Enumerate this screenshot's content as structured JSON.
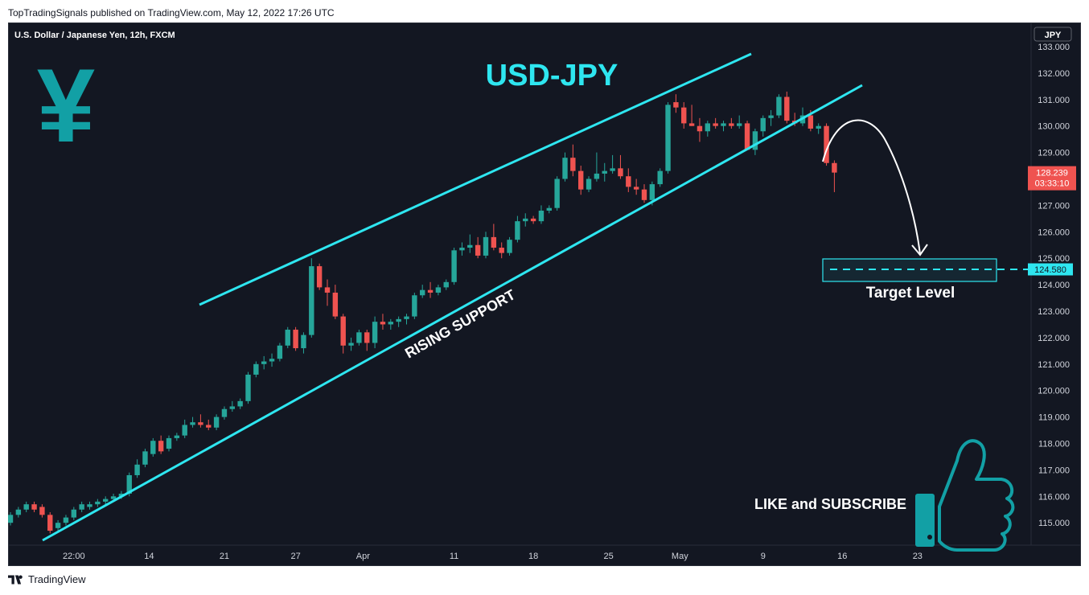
{
  "header": {
    "publisher_line": "TopTradingSignals published on TradingView.com, May 12, 2022 17:26 UTC"
  },
  "footer": {
    "brand": "TradingView",
    "logo_icon": "tradingview-logo-icon"
  },
  "colors": {
    "background": "#131722",
    "up": "#26a69a",
    "down": "#ef5350",
    "channel": "#2ee6f0",
    "teal_icon": "#12a0a5",
    "text": "#d1d4dc"
  },
  "chart_data": {
    "type": "candlestick",
    "symbol_label": "U.S. Dollar / Japanese Yen, 12h, FXCM",
    "title": "USD-JPY",
    "currency": "JPY",
    "last_price": "128.239",
    "countdown": "03:33:10",
    "target_price": "124.580",
    "target_value": 124.58,
    "target_label": "Target Level",
    "channel_label": "RISING SUPPORT",
    "cta_label": "LIKE and SUBSCRIBE",
    "yen_symbol": "¥",
    "icons": [
      "yen-icon",
      "thumbs-up-icon"
    ],
    "ylim": [
      114.0,
      134.0
    ],
    "yticks": [
      "115.000",
      "116.000",
      "117.000",
      "118.000",
      "119.000",
      "120.000",
      "121.000",
      "122.000",
      "123.000",
      "124.000",
      "125.000",
      "126.000",
      "127.000",
      "128.000",
      "129.000",
      "130.000",
      "131.000",
      "132.000",
      "133.000"
    ],
    "xticks": [
      "22:00",
      "14",
      "21",
      "27",
      "Apr",
      "11",
      "18",
      "25",
      "May",
      "9",
      "16",
      "23"
    ],
    "xtick_index": [
      8,
      17.5,
      27,
      36,
      44.5,
      56,
      66,
      75.5,
      84.5,
      95,
      105,
      114.5
    ],
    "candles": [
      [
        115.0,
        115.4,
        114.9,
        115.3
      ],
      [
        115.3,
        115.6,
        115.2,
        115.5
      ],
      [
        115.5,
        115.8,
        115.4,
        115.7
      ],
      [
        115.7,
        115.8,
        115.4,
        115.5
      ],
      [
        115.6,
        115.7,
        115.2,
        115.3
      ],
      [
        115.3,
        115.4,
        114.6,
        114.7
      ],
      [
        114.8,
        115.1,
        114.7,
        115.0
      ],
      [
        115.0,
        115.3,
        114.9,
        115.2
      ],
      [
        115.2,
        115.6,
        115.1,
        115.5
      ],
      [
        115.5,
        115.8,
        115.4,
        115.7
      ],
      [
        115.6,
        115.8,
        115.5,
        115.7
      ],
      [
        115.7,
        115.9,
        115.6,
        115.8
      ],
      [
        115.8,
        116.0,
        115.7,
        115.9
      ],
      [
        115.9,
        116.1,
        115.8,
        116.0
      ],
      [
        116.0,
        116.2,
        115.9,
        116.1
      ],
      [
        116.1,
        116.9,
        116.0,
        116.8
      ],
      [
        116.8,
        117.4,
        116.7,
        117.2
      ],
      [
        117.2,
        117.8,
        117.1,
        117.7
      ],
      [
        117.6,
        118.2,
        117.5,
        118.1
      ],
      [
        118.1,
        118.3,
        117.6,
        117.7
      ],
      [
        117.8,
        118.3,
        117.7,
        118.2
      ],
      [
        118.2,
        118.4,
        118.1,
        118.3
      ],
      [
        118.3,
        118.9,
        118.2,
        118.7
      ],
      [
        118.7,
        119.0,
        118.6,
        118.8
      ],
      [
        118.8,
        119.1,
        118.6,
        118.7
      ],
      [
        118.7,
        118.9,
        118.5,
        118.6
      ],
      [
        118.6,
        119.1,
        118.5,
        119.0
      ],
      [
        119.0,
        119.4,
        118.9,
        119.3
      ],
      [
        119.3,
        119.6,
        119.2,
        119.4
      ],
      [
        119.4,
        119.7,
        119.3,
        119.6
      ],
      [
        119.6,
        120.7,
        119.5,
        120.6
      ],
      [
        120.6,
        121.1,
        120.5,
        121.0
      ],
      [
        121.0,
        121.3,
        120.8,
        121.1
      ],
      [
        121.1,
        121.4,
        120.9,
        121.2
      ],
      [
        121.2,
        121.8,
        121.1,
        121.7
      ],
      [
        121.7,
        122.4,
        121.6,
        122.3
      ],
      [
        122.3,
        122.4,
        121.5,
        121.6
      ],
      [
        121.6,
        122.2,
        121.4,
        122.1
      ],
      [
        122.1,
        125.0,
        122.0,
        124.7
      ],
      [
        124.7,
        124.8,
        123.8,
        123.9
      ],
      [
        123.9,
        124.2,
        123.2,
        123.7
      ],
      [
        123.7,
        124.0,
        122.7,
        122.8
      ],
      [
        122.8,
        122.9,
        121.4,
        121.7
      ],
      [
        121.7,
        122.0,
        121.5,
        121.8
      ],
      [
        121.8,
        122.3,
        121.7,
        122.2
      ],
      [
        122.2,
        122.3,
        121.5,
        121.8
      ],
      [
        121.8,
        122.8,
        121.6,
        122.6
      ],
      [
        122.6,
        122.9,
        122.3,
        122.5
      ],
      [
        122.5,
        122.7,
        122.3,
        122.6
      ],
      [
        122.6,
        122.8,
        122.4,
        122.7
      ],
      [
        122.7,
        122.9,
        122.5,
        122.8
      ],
      [
        122.8,
        123.7,
        122.7,
        123.6
      ],
      [
        123.6,
        124.0,
        123.5,
        123.8
      ],
      [
        123.8,
        124.1,
        123.5,
        123.7
      ],
      [
        123.7,
        124.0,
        123.6,
        123.9
      ],
      [
        123.9,
        124.2,
        123.8,
        124.1
      ],
      [
        124.1,
        125.4,
        124.0,
        125.3
      ],
      [
        125.3,
        125.6,
        125.1,
        125.4
      ],
      [
        125.4,
        125.9,
        125.2,
        125.5
      ],
      [
        125.5,
        125.8,
        125.0,
        125.1
      ],
      [
        125.1,
        126.0,
        125.0,
        125.8
      ],
      [
        125.8,
        126.3,
        125.3,
        125.4
      ],
      [
        125.4,
        125.6,
        125.0,
        125.2
      ],
      [
        125.2,
        125.8,
        125.1,
        125.7
      ],
      [
        125.7,
        126.6,
        125.6,
        126.4
      ],
      [
        126.4,
        126.7,
        126.2,
        126.5
      ],
      [
        126.5,
        126.6,
        126.3,
        126.4
      ],
      [
        126.4,
        127.0,
        126.3,
        126.8
      ],
      [
        126.8,
        127.0,
        126.7,
        126.9
      ],
      [
        126.9,
        128.1,
        126.8,
        128.0
      ],
      [
        128.0,
        129.0,
        127.9,
        128.8
      ],
      [
        128.8,
        129.3,
        128.1,
        128.3
      ],
      [
        128.3,
        128.5,
        127.4,
        127.6
      ],
      [
        127.6,
        128.1,
        127.5,
        128.0
      ],
      [
        128.0,
        129.0,
        127.9,
        128.2
      ],
      [
        128.2,
        128.6,
        127.9,
        128.3
      ],
      [
        128.3,
        128.9,
        128.2,
        128.4
      ],
      [
        128.4,
        128.9,
        128.0,
        128.1
      ],
      [
        128.1,
        128.4,
        127.5,
        127.7
      ],
      [
        127.7,
        128.0,
        127.4,
        127.6
      ],
      [
        127.6,
        127.8,
        127.1,
        127.2
      ],
      [
        127.2,
        127.9,
        127.0,
        127.8
      ],
      [
        127.8,
        128.4,
        127.7,
        128.3
      ],
      [
        128.3,
        130.9,
        128.2,
        130.8
      ],
      [
        130.9,
        131.2,
        130.5,
        130.7
      ],
      [
        130.7,
        130.9,
        129.9,
        130.1
      ],
      [
        130.1,
        130.8,
        130.0,
        130.0
      ],
      [
        130.0,
        130.3,
        129.4,
        129.8
      ],
      [
        129.8,
        130.2,
        129.6,
        130.1
      ],
      [
        130.1,
        130.3,
        129.9,
        130.0
      ],
      [
        130.0,
        130.2,
        129.8,
        130.1
      ],
      [
        130.1,
        130.3,
        129.9,
        130.0
      ],
      [
        130.0,
        130.4,
        129.9,
        130.1
      ],
      [
        130.1,
        130.2,
        129.1,
        129.1
      ],
      [
        129.1,
        129.9,
        128.9,
        129.8
      ],
      [
        129.8,
        130.4,
        129.6,
        130.3
      ],
      [
        130.3,
        130.6,
        130.0,
        130.4
      ],
      [
        130.4,
        131.2,
        130.3,
        131.1
      ],
      [
        131.1,
        131.3,
        130.1,
        130.2
      ],
      [
        130.2,
        130.5,
        130.0,
        130.1
      ],
      [
        130.1,
        130.7,
        130.0,
        130.4
      ],
      [
        130.4,
        130.6,
        129.8,
        129.9
      ],
      [
        129.9,
        130.1,
        129.7,
        130.0
      ],
      [
        130.0,
        130.1,
        128.5,
        128.6
      ],
      [
        128.6,
        128.7,
        127.5,
        128.239
      ]
    ]
  }
}
